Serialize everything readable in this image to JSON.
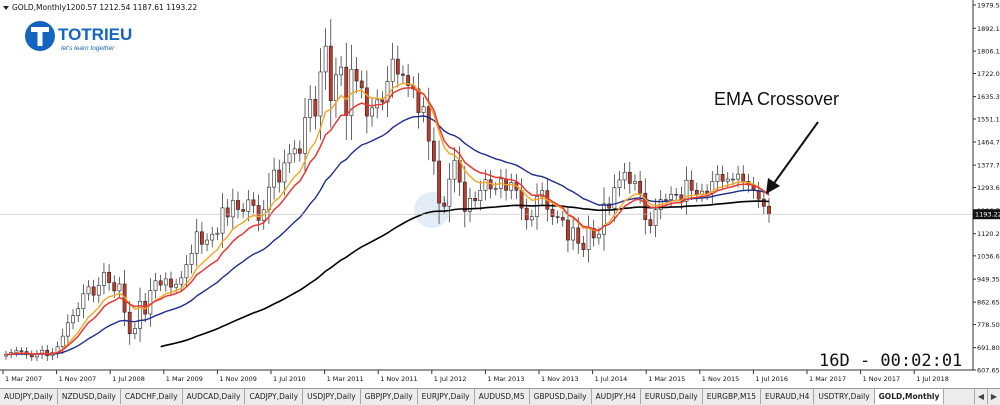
{
  "header": {
    "symbol_timeframe": "GOLD,Monthly",
    "ohlc": "1200.57 1212.54 1187.61 1193.22"
  },
  "logo": {
    "brand": "TOTRIEU",
    "tagline": "let's learn together",
    "color": "#1565c0"
  },
  "annotation": {
    "text": "EMA Crossover"
  },
  "countdown": "16D - 00:02:01",
  "chart_data": {
    "type": "candlestick",
    "price_axis": {
      "labels": [
        "1979.55",
        "1892.15",
        "1806.15",
        "1722.00",
        "1635.30",
        "1551.15",
        "1464.75",
        "1377.75",
        "1293.60",
        "1206.70",
        "1120.20",
        "1036.65",
        "949.35",
        "862.65",
        "778.50",
        "691.80",
        "607.65"
      ],
      "range": [
        607.65,
        1979.55
      ],
      "current_price": "1193.22"
    },
    "time_axis": {
      "labels": [
        "1 Mar 2007",
        "1 Nov 2007",
        "1 Jul 2008",
        "1 Mar 2009",
        "1 Nov 2009",
        "1 Jul 2010",
        "1 Mar 2011",
        "1 Nov 2011",
        "1 Jul 2012",
        "1 Mar 2013",
        "1 Nov 2013",
        "1 Jul 2014",
        "1 Mar 2015",
        "1 Nov 2015",
        "1 Jul 2016",
        "1 Mar 2017",
        "1 Nov 2017",
        "1 Jul 2018"
      ]
    },
    "close": [
      666,
      673,
      680,
      677,
      666,
      657,
      667,
      682,
      661,
      673,
      695,
      735,
      785,
      812,
      838,
      894,
      920,
      889,
      926,
      975,
      936,
      905,
      931,
      825,
      744,
      764,
      866,
      818,
      906,
      943,
      927,
      950,
      919,
      930,
      954,
      1004,
      1046,
      1127,
      1080,
      1096,
      1118,
      1122,
      1217,
      1183,
      1245,
      1211,
      1204,
      1247,
      1226,
      1170,
      1210,
      1295,
      1359,
      1314,
      1386,
      1420,
      1439,
      1422,
      1556,
      1625,
      1562,
      1728,
      1825,
      1620,
      1717,
      1746,
      1564,
      1738,
      1694,
      1668,
      1562,
      1593,
      1623,
      1615,
      1692,
      1776,
      1720,
      1715,
      1677,
      1664,
      1575,
      1597,
      1468,
      1393,
      1235,
      1223,
      1325,
      1396,
      1314,
      1204,
      1253,
      1244,
      1283,
      1323,
      1288,
      1290,
      1326,
      1283,
      1312,
      1283,
      1216,
      1172,
      1184,
      1260,
      1282,
      1212,
      1184,
      1181,
      1171,
      1096,
      1142,
      1084,
      1060,
      1140,
      1104,
      1118,
      1232,
      1216,
      1293,
      1322,
      1351,
      1309,
      1317,
      1272,
      1173,
      1150,
      1210,
      1248,
      1248,
      1268,
      1266,
      1242,
      1321,
      1283,
      1267,
      1280,
      1272,
      1316,
      1343,
      1317,
      1325,
      1325,
      1344,
      1317,
      1303,
      1282,
      1250,
      1223,
      1193
    ],
    "ema_red": [
      666,
      667,
      670,
      671,
      670,
      668,
      668,
      670,
      668,
      669,
      673,
      683,
      699,
      716,
      735,
      761,
      786,
      800,
      821,
      846,
      860,
      868,
      880,
      870,
      855,
      846,
      849,
      844,
      855,
      867,
      874,
      885,
      889,
      895,
      904,
      920,
      939,
      966,
      979,
      994,
      1008,
      1020,
      1049,
      1067,
      1091,
      1108,
      1120,
      1138,
      1150,
      1153,
      1162,
      1183,
      1210,
      1227,
      1251,
      1277,
      1301,
      1318,
      1350,
      1389,
      1410,
      1448,
      1492,
      1509,
      1538,
      1565,
      1565,
      1588,
      1602,
      1611,
      1603,
      1601,
      1604,
      1606,
      1619,
      1648,
      1658,
      1666,
      1668,
      1668,
      1652,
      1645,
      1617,
      1584,
      1520,
      1469,
      1445,
      1437,
      1419,
      1388,
      1373,
      1359,
      1349,
      1346,
      1338,
      1331,
      1332,
      1324,
      1323,
      1317,
      1302,
      1280,
      1265,
      1264,
      1266,
      1254,
      1241,
      1230,
      1218,
      1192,
      1183,
      1165,
      1147,
      1145,
      1137,
      1132,
      1148,
      1155,
      1175,
      1198,
      1223,
      1235,
      1247,
      1249,
      1234,
      1219,
      1218,
      1222,
      1226,
      1233,
      1236,
      1237,
      1250,
      1254,
      1256,
      1260,
      1262,
      1270,
      1282,
      1287,
      1293,
      1297,
      1304,
      1306,
      1306,
      1302,
      1293,
      1281,
      1265
    ]
  },
  "tabs": [
    "AUDJPY,Daily",
    "NZDUSD,Daily",
    "CADCHF,Daily",
    "AUDCAD,Daily",
    "CADJPY,Daily",
    "USDJPY,Daily",
    "GBPJPY,Daily",
    "EURJPY,Daily",
    "AUDUSD,M5",
    "GBPUSD,Daily",
    "AUDJPY,H4",
    "EURUSD,Daily",
    "EURGBP,M15",
    "EURAUD,H4",
    "USDTRY,Daily",
    "GOLD,Monthly"
  ],
  "active_tab": "GOLD,Monthly",
  "colors": {
    "bull_candle": "#ffffff",
    "bear_candle": "#c0392b",
    "ema_fast": "#e53935",
    "ema_mid": "#f5a623",
    "ema_slow": "#1f2d8a",
    "ema_long": "#000000"
  }
}
